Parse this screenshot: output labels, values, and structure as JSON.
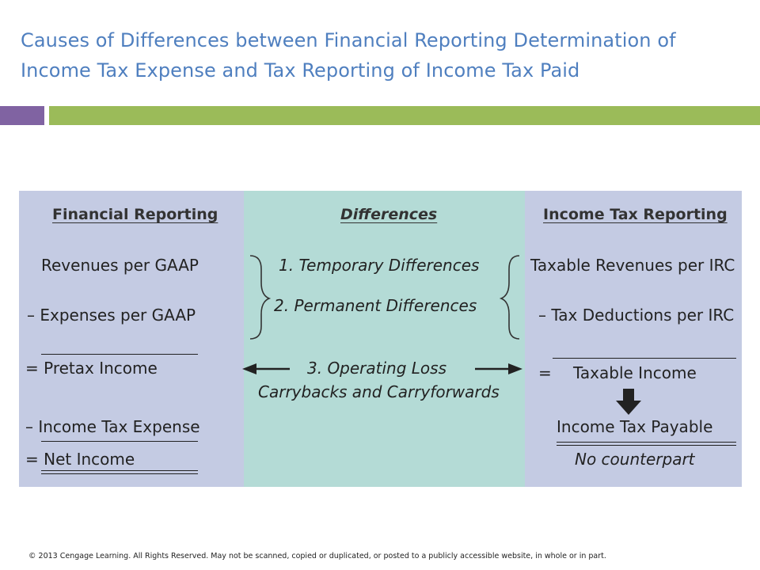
{
  "slide": {
    "title_line1": "Causes of Differences between Financial Reporting Determination of",
    "title_line2": "Income Tax Expense and Tax Reporting of Income Tax Paid",
    "footer": "© 2013 Cengage Learning. All Rights Reserved. May not be scanned, copied or duplicated, or posted to a publicly accessible website, in whole or in part."
  },
  "colors": {
    "title": "#4f7fbf",
    "bar_purple": "#8063a2",
    "bar_green": "#9bbb59",
    "side_panels": "#c4cbe3",
    "middle_panel": "#b4dbd6"
  },
  "financial": {
    "heading": "Financial Reporting",
    "revenues": "Revenues per GAAP",
    "expenses": "– Expenses per GAAP",
    "pretax": "= Pretax Income",
    "tax_expense": "– Income Tax Expense",
    "net_income": "= Net Income"
  },
  "differences": {
    "heading": "Differences",
    "item1": "1. Temporary Differences",
    "item2": "2. Permanent Differences",
    "item3_line1": "3. Operating Loss",
    "item3_line2": "Carrybacks and Carryforwards"
  },
  "tax": {
    "heading": "Income Tax Reporting",
    "revenues": "Taxable Revenues per IRC",
    "deductions": "–  Tax Deductions per IRC",
    "equals": "=",
    "taxable_income": "Taxable Income",
    "payable": "Income Tax Payable",
    "no_counterpart": "No counterpart"
  },
  "icons": [
    "left-arrow-icon",
    "right-arrow-icon",
    "down-arrow-icon",
    "left-brace-icon",
    "right-brace-icon"
  ]
}
